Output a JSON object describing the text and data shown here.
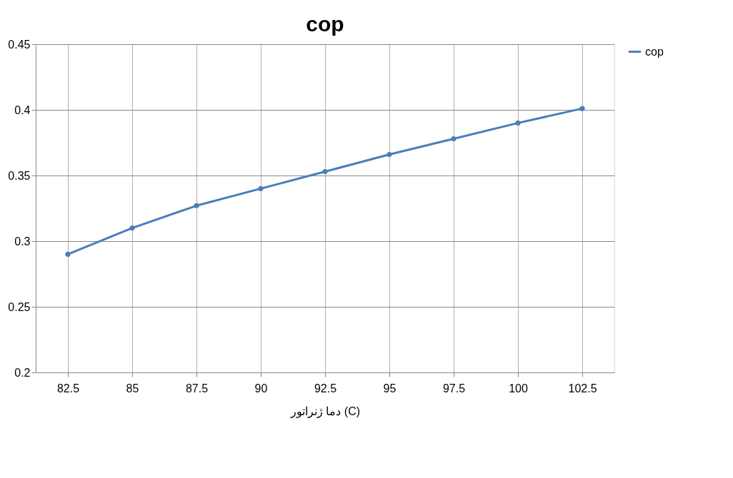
{
  "chart_data": {
    "type": "line",
    "title": "cop",
    "xlabel": "دما ژنراتور (C)",
    "categories": [
      "82.5",
      "85",
      "87.5",
      "90",
      "92.5",
      "95",
      "97.5",
      "100",
      "102.5"
    ],
    "series": [
      {
        "name": "cop",
        "color": "#4a7ebb",
        "values": [
          0.29,
          0.31,
          0.327,
          0.34,
          0.353,
          0.366,
          0.378,
          0.39,
          0.401
        ]
      }
    ],
    "ylim": [
      0.2,
      0.45
    ],
    "yticks": [
      0.2,
      0.25,
      0.3,
      0.35,
      0.4,
      0.45
    ],
    "grid": true,
    "legend": "right",
    "marker": "circle",
    "line_style": "solid"
  }
}
